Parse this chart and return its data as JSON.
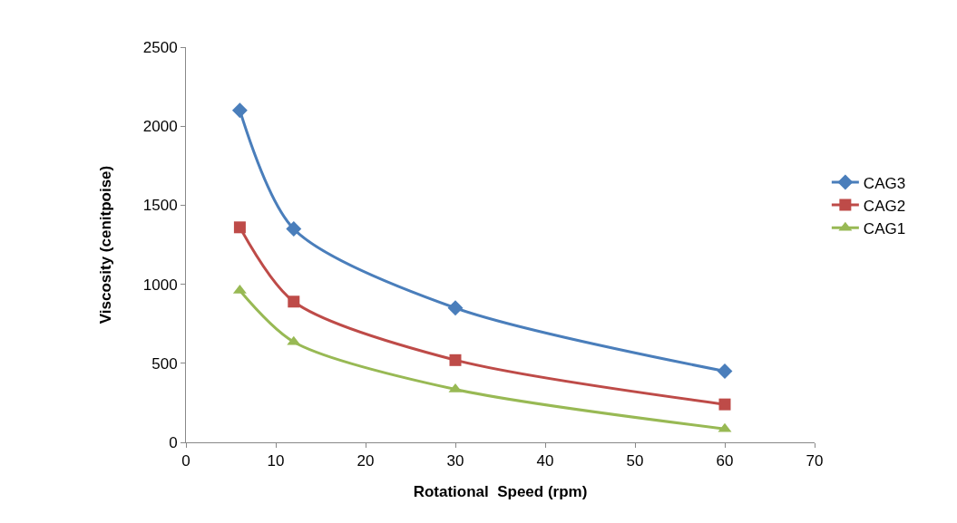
{
  "chart_data": {
    "type": "line",
    "xlabel": "Rotational  Speed (rpm)",
    "ylabel": "Viscosity (cenitpoise)",
    "x": [
      6,
      12,
      30,
      60
    ],
    "series": [
      {
        "name": "CAG3",
        "color": "#4a7ebb",
        "marker": "diamond",
        "values": [
          2100,
          1350,
          850,
          450
        ]
      },
      {
        "name": "CAG2",
        "color": "#be4b48",
        "marker": "square",
        "values": [
          1360,
          890,
          520,
          240
        ]
      },
      {
        "name": "CAG1",
        "color": "#98b954",
        "marker": "triangle",
        "values": [
          960,
          635,
          335,
          85
        ]
      }
    ],
    "xlim": [
      0,
      70
    ],
    "xticks": [
      0,
      10,
      20,
      30,
      40,
      50,
      60,
      70
    ],
    "ylim": [
      0,
      2500
    ],
    "yticks": [
      0,
      500,
      1000,
      1500,
      2000,
      2500
    ],
    "grid": false,
    "legend": "right",
    "line_style": "solid"
  }
}
